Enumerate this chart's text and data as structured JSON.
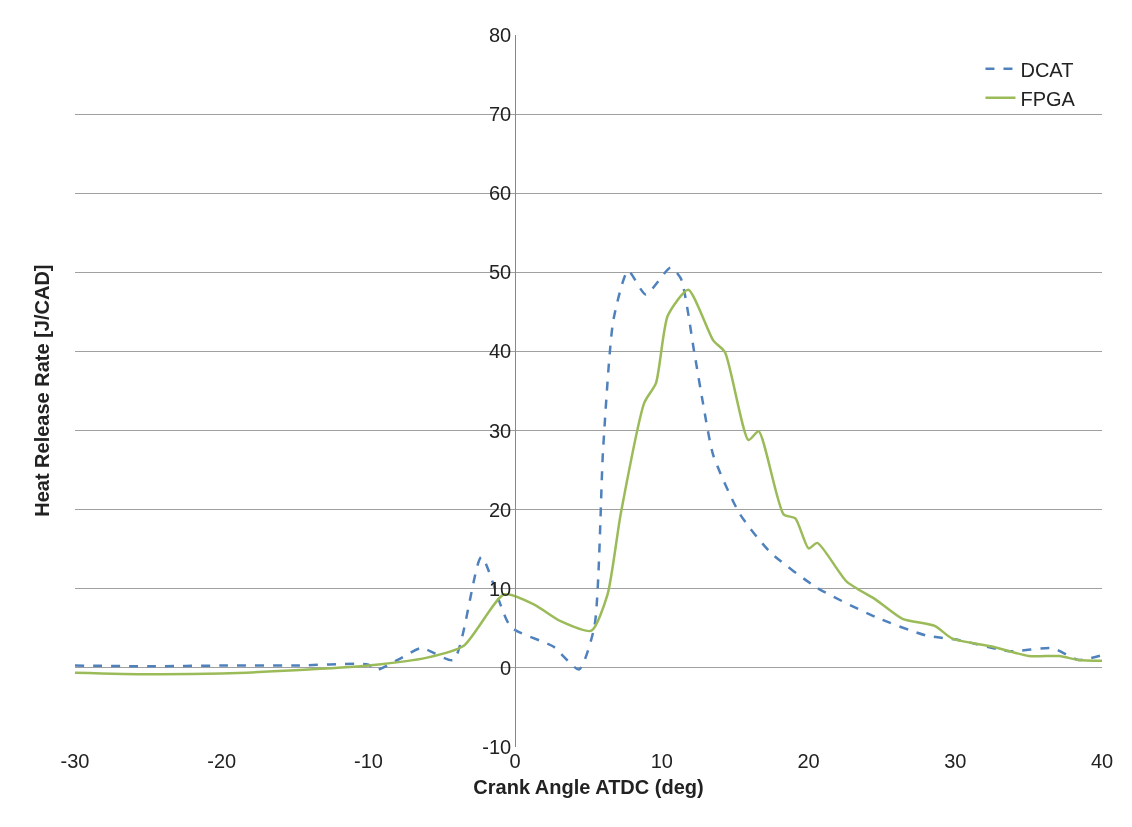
{
  "chart_data": {
    "type": "line",
    "xlabel": "Crank Angle ATDC (deg)",
    "ylabel": "Heat Release Rate [J/CAD]",
    "xlim": [
      -30,
      40
    ],
    "xticks": [
      -30,
      -20,
      -10,
      0,
      10,
      20,
      30,
      40
    ],
    "ylim": [
      -10,
      80
    ],
    "yticks": [
      -10,
      0,
      10,
      20,
      30,
      40,
      50,
      60,
      70,
      80
    ],
    "grid": "y",
    "legend": "top right",
    "marker": "none",
    "series": [
      {
        "name": "DCAT",
        "color": "#4f81bd",
        "line_style": "dashed",
        "x": [
          -30,
          -25,
          -20,
          -15,
          -10,
          -9.5,
          -8,
          -6.4,
          -4.2,
          -2.3,
          -0.3,
          2.6,
          4.35,
          5.4,
          6.0,
          6.7,
          7.7,
          8.9,
          10.6,
          11.3,
          12.2,
          12.8,
          13.5,
          15.3,
          17.4,
          20.6,
          24.6,
          28,
          30.3,
          33.7,
          36.6,
          38.4,
          40
        ],
        "values": [
          0.3,
          0.2,
          0.3,
          0.3,
          0.4,
          -0.3,
          1,
          2.5,
          1.0,
          14,
          5.2,
          2.7,
          -0.2,
          5.2,
          27.8,
          44,
          50.2,
          47.2,
          50.6,
          49.2,
          40,
          33.5,
          26.9,
          19.5,
          14.6,
          10.1,
          6.4,
          4.1,
          3.5,
          2.1,
          2.5,
          1,
          1.6
        ]
      },
      {
        "name": "FPGA",
        "color": "#9bbb59",
        "line_style": "solid",
        "x": [
          -30,
          -25,
          -20,
          -15,
          -10,
          -6,
          -3.5,
          -0.75,
          1.3,
          3.1,
          5.2,
          6.3,
          7.2,
          8.8,
          9.6,
          10.4,
          11.8,
          13.5,
          14.3,
          15.9,
          16.6,
          18.3,
          19.1,
          20,
          20.6,
          22.6,
          24.6,
          26.4,
          28.6,
          29.8,
          32.5,
          35,
          37.1,
          38.4,
          40
        ],
        "values": [
          -0.6,
          -0.8,
          -0.7,
          -0.3,
          0.3,
          1.3,
          2.8,
          9.3,
          8.0,
          5.9,
          4.7,
          9.3,
          19.5,
          33.5,
          36,
          44.5,
          47.8,
          41.4,
          39.9,
          28.8,
          29.9,
          19.4,
          18.9,
          15.1,
          15.8,
          10.9,
          8.6,
          6.2,
          5.3,
          3.7,
          2.7,
          1.5,
          1.5,
          1,
          0.9
        ]
      }
    ]
  }
}
